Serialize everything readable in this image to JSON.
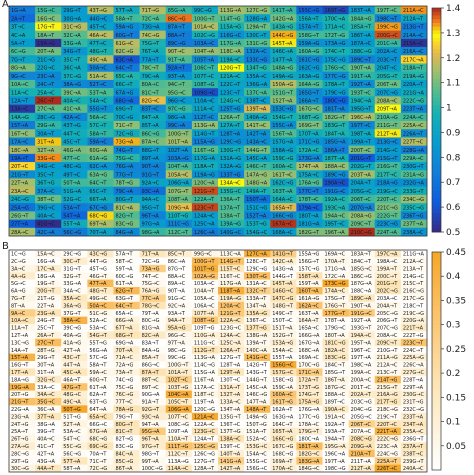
{
  "panels": [
    {
      "label": "A",
      "type": "heatmap",
      "colormap": "parula",
      "vmin": 0.5,
      "vmax": 1.4,
      "colorbar_ticks": [
        "1.4",
        "1.3",
        "1.2",
        "1.1",
        "1",
        "0.9",
        "0.8",
        "0.7",
        "0.6",
        "0.5"
      ],
      "colorbar_tick_values": [
        1.4,
        1.3,
        1.2,
        1.1,
        1.0,
        0.9,
        0.8,
        0.7,
        0.6,
        0.5
      ]
    },
    {
      "label": "B",
      "type": "heatmap",
      "colormap": "white-orange",
      "vmin": 0,
      "vmax": 0.45,
      "colorbar_ticks": [
        "0.45",
        "0.4",
        "0.35",
        "0.3",
        "0.25",
        "0.2",
        "0.15",
        "0.1",
        "0.05"
      ],
      "colorbar_tick_values": [
        0.45,
        0.4,
        0.35,
        0.3,
        0.25,
        0.2,
        0.15,
        0.1,
        0.05
      ]
    }
  ],
  "chart_data": [
    {
      "type": "heatmap",
      "title": "",
      "n_columns": 16,
      "n_rows": 28,
      "cell_label_pattern": "<position><ref>→<alt>",
      "column_start_positions": [
        1,
        15,
        29,
        43,
        57,
        71,
        85,
        99,
        113,
        127,
        141,
        155,
        169,
        183,
        197,
        211
      ],
      "value_range": [
        0.5,
        1.4
      ],
      "colorbar_label": ""
    },
    {
      "type": "heatmap",
      "title": "",
      "n_columns": 16,
      "n_rows": 30,
      "cell_label_pattern": "<position><ref>→<alt>",
      "column_start_positions": [
        1,
        15,
        29,
        43,
        57,
        71,
        85,
        99,
        113,
        127,
        141,
        155,
        169,
        183,
        197,
        211
      ],
      "value_range": [
        0,
        0.45
      ],
      "colorbar_label": ""
    }
  ]
}
